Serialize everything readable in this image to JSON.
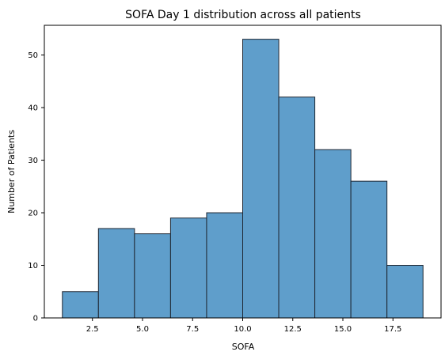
{
  "chart_data": {
    "type": "bar",
    "title": "SOFA Day 1 distribution across all patients",
    "xlabel": "SOFA",
    "ylabel": "Number of Patients",
    "bin_edges": [
      1.0,
      2.8,
      4.6,
      6.4,
      8.2,
      10.0,
      11.8,
      13.6,
      15.4,
      17.2,
      19.0
    ],
    "values": [
      5,
      17,
      16,
      19,
      20,
      53,
      42,
      32,
      26,
      10
    ],
    "xlim": [
      0.1,
      19.9
    ],
    "ylim": [
      0,
      55.65
    ],
    "xticks": [
      2.5,
      5.0,
      7.5,
      10.0,
      12.5,
      15.0,
      17.5
    ],
    "xtick_labels": [
      "2.5",
      "5.0",
      "7.5",
      "10.0",
      "12.5",
      "15.0",
      "17.5"
    ],
    "yticks": [
      0,
      10,
      20,
      30,
      40,
      50
    ],
    "ytick_labels": [
      "0",
      "10",
      "20",
      "30",
      "40",
      "50"
    ],
    "bar_color": "#5f9ecb",
    "edge_color": "#1f2733",
    "grid": false,
    "legend": "none"
  }
}
